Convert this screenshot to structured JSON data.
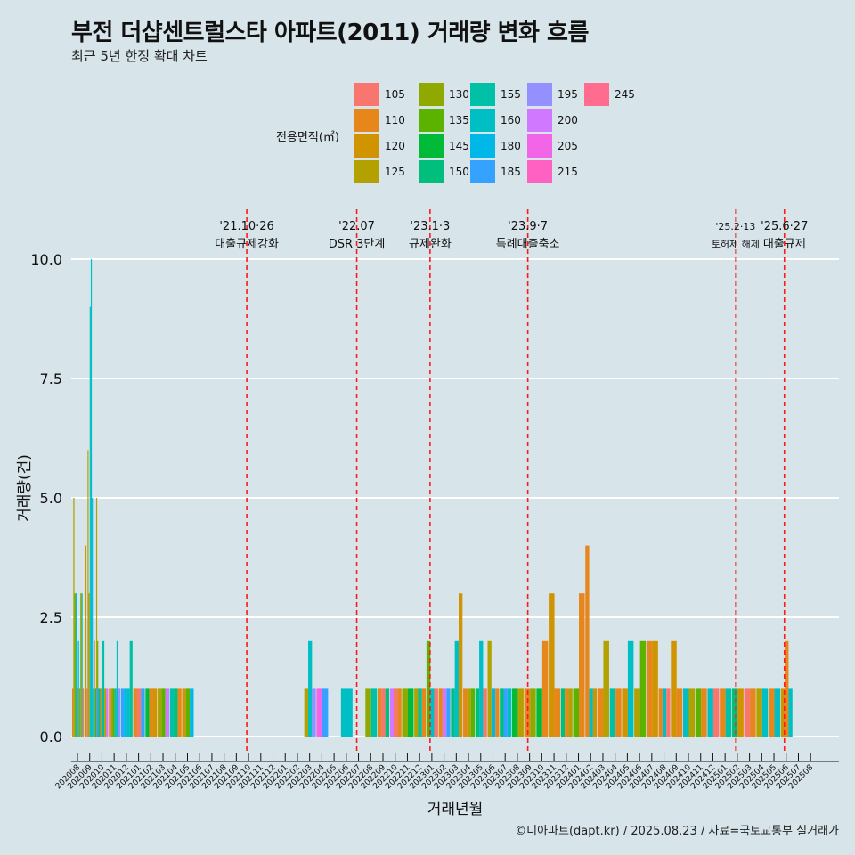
{
  "title": "부전 더샵센트럴스타 아파트(2011) 거래량 변화 흐름",
  "subtitle": "최근 5년 한정 확대 차트",
  "caption": "©디아파트(dapt.kr) / 2025.08.23 / 자료=국토교통부 실거래가",
  "legend": {
    "title": "전용면적(㎡)",
    "items": [
      {
        "label": "105",
        "color": "#f8766d"
      },
      {
        "label": "110",
        "color": "#e7861b"
      },
      {
        "label": "120",
        "color": "#d09400"
      },
      {
        "label": "125",
        "color": "#b2a100"
      },
      {
        "label": "130",
        "color": "#8fa900"
      },
      {
        "label": "135",
        "color": "#5bb300"
      },
      {
        "label": "145",
        "color": "#00ba38"
      },
      {
        "label": "150",
        "color": "#00bf7d"
      },
      {
        "label": "155",
        "color": "#00c1a7"
      },
      {
        "label": "160",
        "color": "#00bfc4"
      },
      {
        "label": "180",
        "color": "#00b8e7"
      },
      {
        "label": "185",
        "color": "#35a2ff"
      },
      {
        "label": "195",
        "color": "#9590ff"
      },
      {
        "label": "200",
        "color": "#d078ff"
      },
      {
        "label": "205",
        "color": "#f265e7"
      },
      {
        "label": "215",
        "color": "#ff61c3"
      },
      {
        "label": "245",
        "color": "#ff6c90"
      }
    ]
  },
  "chart_data": {
    "type": "bar",
    "title": "부전 더샵센트럴스타 아파트(2011) 거래량 변화 흐름",
    "xlabel": "거래년월",
    "ylabel": "거래량(건)",
    "ylim": [
      0,
      10.5
    ],
    "yticks": [
      0,
      2.5,
      5,
      7.5,
      10
    ],
    "ytick_labels": [
      "0.0",
      "2.5",
      "5.0",
      "7.5",
      "10.0"
    ],
    "grid": true,
    "months": [
      "202008",
      "202009",
      "202010",
      "202011",
      "202012",
      "202101",
      "202102",
      "202103",
      "202104",
      "202105",
      "202106",
      "202107",
      "202108",
      "202109",
      "202110",
      "202111",
      "202112",
      "202201",
      "202202",
      "202203",
      "202204",
      "202205",
      "202206",
      "202207",
      "202208",
      "202209",
      "202210",
      "202211",
      "202212",
      "202301",
      "202302",
      "202303",
      "202304",
      "202305",
      "202306",
      "202307",
      "202308",
      "202309",
      "202310",
      "202311",
      "202312",
      "202401",
      "202402",
      "202403",
      "202404",
      "202405",
      "202406",
      "202407",
      "202408",
      "202409",
      "202410",
      "202411",
      "202412",
      "202501",
      "202502",
      "202503",
      "202504",
      "202505",
      "202506",
      "202507",
      "202508"
    ],
    "bars": [
      {
        "month": "202008",
        "items": [
          [
            "110",
            1
          ],
          [
            "125",
            5
          ],
          [
            "135",
            3
          ],
          [
            "160",
            3
          ],
          [
            "105",
            1
          ],
          [
            "160",
            2
          ],
          [
            "130",
            1
          ],
          [
            "125",
            3
          ],
          [
            "155",
            3
          ],
          [
            "105",
            1
          ]
        ]
      },
      {
        "month": "202009",
        "items": [
          [
            "110",
            1
          ],
          [
            "120",
            4
          ],
          [
            "105",
            1
          ],
          [
            "125",
            6
          ],
          [
            "120",
            3
          ],
          [
            "160",
            9
          ],
          [
            "160",
            10
          ],
          [
            "180",
            5
          ],
          [
            "155",
            1
          ],
          [
            "110",
            2
          ],
          [
            "145",
            1
          ],
          [
            "125",
            5
          ],
          [
            "135",
            2
          ],
          [
            "130",
            1
          ]
        ]
      },
      {
        "month": "202010",
        "items": [
          [
            "185",
            1
          ],
          [
            "150",
            1
          ],
          [
            "110",
            1
          ],
          [
            "155",
            2
          ],
          [
            "125",
            1
          ],
          [
            "200",
            1
          ]
        ]
      },
      {
        "month": "202011",
        "items": [
          [
            "105",
            1
          ],
          [
            "125",
            1
          ],
          [
            "135",
            1
          ],
          [
            "160",
            1
          ],
          [
            "160",
            2
          ],
          [
            "195",
            1
          ]
        ]
      },
      {
        "month": "202012",
        "items": [
          [
            "185",
            1
          ],
          [
            "180",
            1
          ],
          [
            "160",
            1
          ],
          [
            "155",
            2
          ]
        ]
      },
      {
        "month": "202101",
        "items": [
          [
            "110",
            1
          ],
          [
            "105",
            1
          ],
          [
            "185",
            1
          ]
        ]
      },
      {
        "month": "202102",
        "items": [
          [
            "145",
            1
          ],
          [
            "110",
            1
          ],
          [
            "120",
            1
          ]
        ]
      },
      {
        "month": "202103",
        "items": [
          [
            "125",
            1
          ],
          [
            "135",
            1
          ],
          [
            "200",
            1
          ]
        ]
      },
      {
        "month": "202104",
        "items": [
          [
            "155",
            1
          ],
          [
            "150",
            1
          ],
          [
            "110",
            1
          ]
        ]
      },
      {
        "month": "202105",
        "items": [
          [
            "120",
            1
          ],
          [
            "135",
            1
          ],
          [
            "180",
            1
          ]
        ]
      },
      {
        "month": "202203",
        "items": [
          [
            "125",
            1
          ],
          [
            "160",
            2
          ],
          [
            "195",
            1
          ]
        ]
      },
      {
        "month": "202204",
        "items": [
          [
            "205",
            1
          ],
          [
            "185",
            1
          ]
        ]
      },
      {
        "month": "202206",
        "items": [
          [
            "160",
            1
          ]
        ]
      },
      {
        "month": "202208",
        "items": [
          [
            "130",
            1
          ],
          [
            "155",
            1
          ]
        ]
      },
      {
        "month": "202209",
        "items": [
          [
            "110",
            1
          ],
          [
            "105",
            1
          ],
          [
            "150",
            1
          ]
        ]
      },
      {
        "month": "202210",
        "items": [
          [
            "200",
            1
          ],
          [
            "105",
            1
          ],
          [
            "110",
            1
          ]
        ]
      },
      {
        "month": "202211",
        "items": [
          [
            "130",
            1
          ],
          [
            "145",
            1
          ]
        ]
      },
      {
        "month": "202212",
        "items": [
          [
            "125",
            1
          ],
          [
            "155",
            1
          ],
          [
            "110",
            1
          ]
        ]
      },
      {
        "month": "202301",
        "items": [
          [
            "135",
            2
          ],
          [
            "160",
            1
          ],
          [
            "105",
            1
          ]
        ]
      },
      {
        "month": "202302",
        "items": [
          [
            "110",
            1
          ],
          [
            "200",
            1
          ],
          [
            "185",
            1
          ]
        ]
      },
      {
        "month": "202303",
        "items": [
          [
            "150",
            1
          ],
          [
            "160",
            2
          ],
          [
            "120",
            3
          ]
        ]
      },
      {
        "month": "202304",
        "items": [
          [
            "110",
            1
          ],
          [
            "125",
            1
          ],
          [
            "135",
            1
          ]
        ]
      },
      {
        "month": "202305",
        "items": [
          [
            "150",
            1
          ],
          [
            "160",
            2
          ],
          [
            "105",
            1
          ]
        ]
      },
      {
        "month": "202306",
        "items": [
          [
            "125",
            2
          ],
          [
            "180",
            1
          ],
          [
            "110",
            1
          ]
        ]
      },
      {
        "month": "202307",
        "items": [
          [
            "150",
            1
          ],
          [
            "185",
            1
          ],
          [
            "160",
            1
          ]
        ]
      },
      {
        "month": "202308",
        "items": [
          [
            "145",
            1
          ],
          [
            "125",
            1
          ]
        ]
      },
      {
        "month": "202309",
        "items": [
          [
            "110",
            1
          ],
          [
            "130",
            1
          ]
        ]
      },
      {
        "month": "202310",
        "items": [
          [
            "145",
            1
          ],
          [
            "110",
            2
          ]
        ]
      },
      {
        "month": "202311",
        "items": [
          [
            "120",
            3
          ],
          [
            "110",
            1
          ]
        ]
      },
      {
        "month": "202312",
        "items": [
          [
            "150",
            1
          ],
          [
            "110",
            1
          ],
          [
            "125",
            1
          ]
        ]
      },
      {
        "month": "202401",
        "items": [
          [
            "135",
            1
          ],
          [
            "110",
            3
          ]
        ]
      },
      {
        "month": "202402",
        "items": [
          [
            "110",
            4
          ],
          [
            "160",
            1
          ],
          [
            "120",
            1
          ]
        ]
      },
      {
        "month": "202403",
        "items": [
          [
            "110",
            1
          ],
          [
            "125",
            2
          ]
        ]
      },
      {
        "month": "202404",
        "items": [
          [
            "155",
            1
          ],
          [
            "110",
            1
          ]
        ]
      },
      {
        "month": "202405",
        "items": [
          [
            "120",
            1
          ],
          [
            "160",
            2
          ]
        ]
      },
      {
        "month": "202406",
        "items": [
          [
            "125",
            1
          ],
          [
            "135",
            2
          ]
        ]
      },
      {
        "month": "202407",
        "items": [
          [
            "110",
            2
          ],
          [
            "120",
            2
          ]
        ]
      },
      {
        "month": "202408",
        "items": [
          [
            "110",
            1
          ],
          [
            "160",
            1
          ],
          [
            "105",
            1
          ]
        ]
      },
      {
        "month": "202409",
        "items": [
          [
            "120",
            2
          ],
          [
            "110",
            1
          ]
        ]
      },
      {
        "month": "202410",
        "items": [
          [
            "160",
            1
          ],
          [
            "125",
            1
          ]
        ]
      },
      {
        "month": "202411",
        "items": [
          [
            "135",
            1
          ],
          [
            "110",
            1
          ]
        ]
      },
      {
        "month": "202412",
        "items": [
          [
            "160",
            1
          ],
          [
            "105",
            1
          ]
        ]
      },
      {
        "month": "202501",
        "items": [
          [
            "110",
            1
          ],
          [
            "155",
            1
          ]
        ]
      },
      {
        "month": "202502",
        "items": [
          [
            "150",
            1
          ],
          [
            "120",
            1
          ]
        ]
      },
      {
        "month": "202503",
        "items": [
          [
            "105",
            1
          ],
          [
            "110",
            1
          ]
        ]
      },
      {
        "month": "202504",
        "items": [
          [
            "125",
            1
          ],
          [
            "160",
            1
          ]
        ]
      },
      {
        "month": "202505",
        "items": [
          [
            "110",
            1
          ],
          [
            "160",
            1
          ]
        ]
      },
      {
        "month": "202506",
        "items": [
          [
            "120",
            1
          ],
          [
            "110",
            2
          ],
          [
            "160",
            1
          ]
        ]
      }
    ],
    "events": [
      {
        "month": "202110",
        "date": "'21.10·26",
        "label": "대출규제강화",
        "style": "major"
      },
      {
        "month": "202207",
        "date": "'22.07",
        "label": "DSR 3단계",
        "style": "major"
      },
      {
        "month": "202301",
        "date": "'23.1·3",
        "label": "규제완화",
        "style": "major"
      },
      {
        "month": "202309",
        "date": "'23.9·7",
        "label": "특례대출축소",
        "style": "major"
      },
      {
        "month": "202502",
        "date": "'25.2·13",
        "label": "토허제 해제",
        "style": "minor"
      },
      {
        "month": "202506",
        "date": "'25.6·27",
        "label": "대출규제",
        "style": "major"
      }
    ]
  }
}
